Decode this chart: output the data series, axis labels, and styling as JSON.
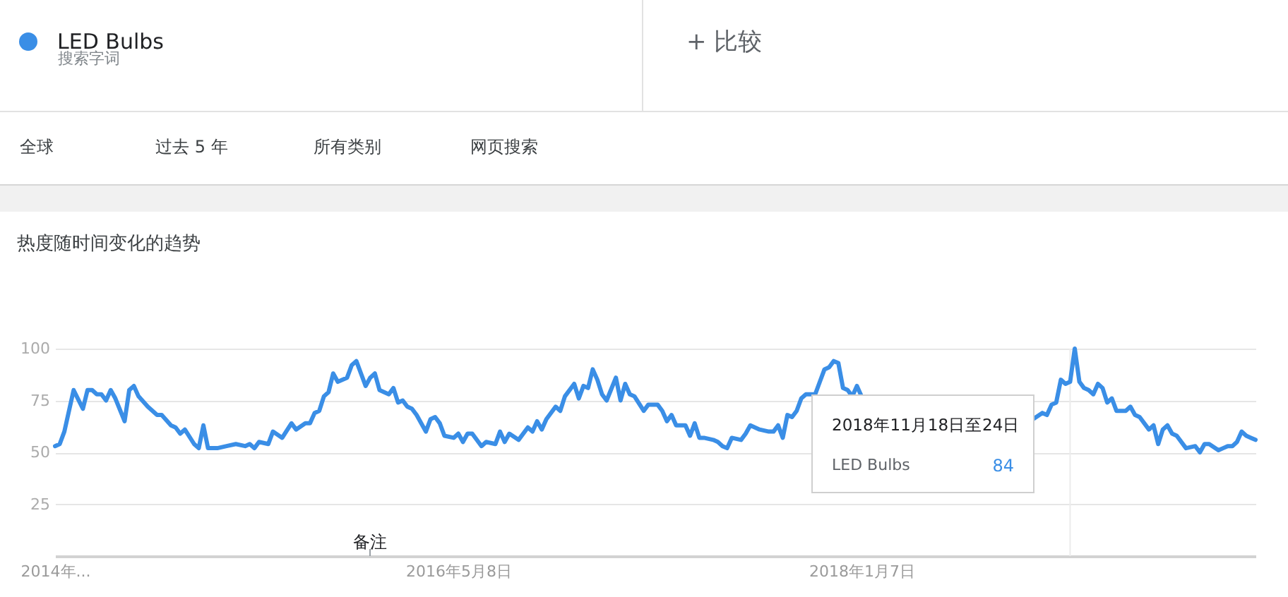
{
  "chart_data": {
    "type": "line",
    "title": "热度随时间变化的趋势",
    "legend": "top left",
    "grid": "y",
    "xlim": [
      "2014-09-07",
      "2019-08-25"
    ],
    "xticks": [
      {
        "value": "2014-09-07",
        "label": "2014年..."
      },
      {
        "value": "2016-05-08",
        "label": "2016年5月8日"
      },
      {
        "value": "2018-01-07",
        "label": "2018年1月7日"
      }
    ],
    "ylim": [
      0,
      100
    ],
    "yticks": [
      25,
      50,
      75,
      100
    ],
    "series": [
      {
        "name": "LED Bulbs",
        "color": "#3a8ee6",
        "x": [
          "2014-09-07",
          "2014-09-14",
          "2014-09-21",
          "2014-10-05",
          "2014-10-19",
          "2014-10-26",
          "2014-11-02",
          "2014-11-09",
          "2014-11-16",
          "2014-11-23",
          "2014-11-30",
          "2014-12-07",
          "2014-12-21",
          "2014-12-28",
          "2015-01-04",
          "2015-01-11",
          "2015-01-25",
          "2015-02-08",
          "2015-02-15",
          "2015-03-01",
          "2015-03-08",
          "2015-03-15",
          "2015-03-22",
          "2015-04-05",
          "2015-04-12",
          "2015-04-19",
          "2015-04-26",
          "2015-05-10",
          "2015-05-24",
          "2015-06-07",
          "2015-06-21",
          "2015-06-28",
          "2015-07-05",
          "2015-07-12",
          "2015-07-26",
          "2015-08-02",
          "2015-08-16",
          "2015-08-30",
          "2015-09-06",
          "2015-09-20",
          "2015-09-27",
          "2015-10-04",
          "2015-10-11",
          "2015-10-18",
          "2015-10-25",
          "2015-11-01",
          "2015-11-08",
          "2015-11-22",
          "2015-11-29",
          "2015-12-06",
          "2015-12-13",
          "2015-12-20",
          "2015-12-27",
          "2016-01-03",
          "2016-01-10",
          "2016-01-24",
          "2016-01-31",
          "2016-02-07",
          "2016-02-14",
          "2016-02-21",
          "2016-02-28",
          "2016-03-06",
          "2016-03-20",
          "2016-03-27",
          "2016-04-03",
          "2016-04-10",
          "2016-04-17",
          "2016-05-01",
          "2016-05-08",
          "2016-05-15",
          "2016-05-22",
          "2016-05-29",
          "2016-06-12",
          "2016-06-19",
          "2016-07-03",
          "2016-07-10",
          "2016-07-17",
          "2016-07-24",
          "2016-08-07",
          "2016-08-21",
          "2016-08-28",
          "2016-09-04",
          "2016-09-11",
          "2016-09-18",
          "2016-10-02",
          "2016-10-09",
          "2016-10-16",
          "2016-10-30",
          "2016-11-06",
          "2016-11-13",
          "2016-11-20",
          "2016-11-27",
          "2016-12-04",
          "2016-12-11",
          "2016-12-18",
          "2017-01-01",
          "2017-01-08",
          "2017-01-15",
          "2017-01-22",
          "2017-01-29",
          "2017-02-12",
          "2017-02-19",
          "2017-03-05",
          "2017-03-12",
          "2017-03-19",
          "2017-03-26",
          "2017-04-02",
          "2017-04-16",
          "2017-04-23",
          "2017-04-30",
          "2017-05-07",
          "2017-05-14",
          "2017-05-28",
          "2017-06-04",
          "2017-06-11",
          "2017-06-18",
          "2017-06-25",
          "2017-07-09",
          "2017-07-16",
          "2017-07-23",
          "2017-07-30",
          "2017-08-06",
          "2017-08-20",
          "2017-08-27",
          "2017-09-03",
          "2017-09-10",
          "2017-09-17",
          "2017-09-24",
          "2017-10-01",
          "2017-10-08",
          "2017-10-15",
          "2017-10-29",
          "2017-11-05",
          "2017-11-12",
          "2017-11-19",
          "2017-11-26",
          "2017-12-03",
          "2017-12-10",
          "2017-12-17",
          "2017-12-24",
          "2017-12-31",
          "2018-01-07",
          "2018-01-14",
          "2018-09-16",
          "2018-09-23",
          "2018-10-07",
          "2018-10-14",
          "2018-10-21",
          "2018-10-28",
          "2018-11-04",
          "2018-11-11",
          "2018-11-18",
          "2018-11-25",
          "2018-12-02",
          "2018-12-09",
          "2018-12-16",
          "2018-12-23",
          "2018-12-30",
          "2019-01-06",
          "2019-01-13",
          "2019-01-20",
          "2019-01-27",
          "2019-02-10",
          "2019-02-17",
          "2019-02-24",
          "2019-03-03",
          "2019-03-17",
          "2019-03-24",
          "2019-03-31",
          "2019-04-07",
          "2019-04-14",
          "2019-04-21",
          "2019-04-28",
          "2019-05-12",
          "2019-05-26",
          "2019-06-02",
          "2019-06-09",
          "2019-06-16",
          "2019-06-30",
          "2019-07-07",
          "2019-07-14",
          "2019-07-21",
          "2019-07-28",
          "2019-08-04",
          "2019-08-11",
          "2019-08-18",
          "2019-08-25"
        ],
        "values": [
          53,
          54,
          60,
          80,
          71,
          80,
          80,
          78,
          78,
          75,
          80,
          76,
          65,
          80,
          82,
          77,
          72,
          68,
          68,
          63,
          62,
          59,
          61,
          54,
          52,
          63,
          52,
          52,
          53,
          54,
          53,
          54,
          52,
          55,
          54,
          60,
          57,
          64,
          61,
          64,
          64,
          69,
          70,
          77,
          79,
          88,
          84,
          86,
          92,
          94,
          88,
          82,
          86,
          88,
          80,
          78,
          81,
          74,
          75,
          72,
          71,
          68,
          60,
          66,
          67,
          64,
          58,
          57,
          59,
          55,
          59,
          59,
          53,
          55,
          54,
          60,
          55,
          59,
          56,
          62,
          60,
          65,
          61,
          66,
          72,
          70,
          77,
          83,
          76,
          82,
          81,
          90,
          85,
          78,
          75,
          86,
          75,
          83,
          78,
          77,
          70,
          73,
          73,
          70,
          65,
          68,
          63,
          63,
          58,
          64,
          57,
          57,
          56,
          55,
          53,
          52,
          57,
          56,
          59,
          63,
          62,
          61,
          60,
          60,
          63,
          57,
          68,
          67,
          70,
          76,
          78,
          78,
          84,
          90,
          91,
          94,
          93,
          81,
          80,
          77,
          82,
          77,
          null,
          null,
          66,
          69,
          68,
          73,
          74,
          85,
          83,
          84,
          100,
          84,
          81,
          80,
          78,
          83,
          81,
          74,
          76,
          70,
          70,
          72,
          68,
          67,
          61,
          63,
          54,
          61,
          63,
          59,
          58,
          52,
          53,
          50,
          54,
          54,
          51,
          52,
          53,
          53,
          55,
          60,
          58,
          57,
          56
        ]
      }
    ],
    "ref_lines": [
      {
        "axis": "x",
        "value": "2018-11-18",
        "color": "#ececec"
      }
    ],
    "annotations": [
      "搜索字词",
      "+ 比较",
      "全球",
      "过去 5 年",
      "所有类别",
      "网页搜索",
      "2018年11月18日至24日",
      "LED Bulbs",
      "84",
      "备注"
    ]
  }
}
